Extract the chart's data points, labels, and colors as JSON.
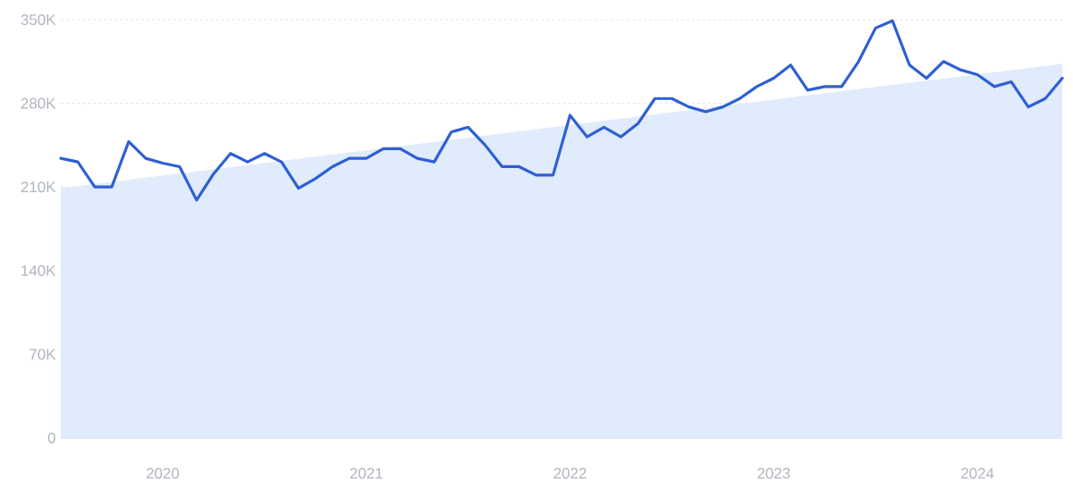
{
  "chart_data": {
    "type": "line",
    "x": [
      "2019-07",
      "2019-08",
      "2019-09",
      "2019-10",
      "2019-11",
      "2019-12",
      "2020-01",
      "2020-02",
      "2020-03",
      "2020-04",
      "2020-05",
      "2020-06",
      "2020-07",
      "2020-08",
      "2020-09",
      "2020-10",
      "2020-11",
      "2020-12",
      "2021-01",
      "2021-02",
      "2021-03",
      "2021-04",
      "2021-05",
      "2021-06",
      "2021-07",
      "2021-08",
      "2021-09",
      "2021-10",
      "2021-11",
      "2021-12",
      "2022-01",
      "2022-02",
      "2022-03",
      "2022-04",
      "2022-05",
      "2022-06",
      "2022-07",
      "2022-08",
      "2022-09",
      "2022-10",
      "2022-11",
      "2022-12",
      "2023-01",
      "2023-02",
      "2023-03",
      "2023-04",
      "2023-05",
      "2023-06",
      "2023-07",
      "2023-08",
      "2023-09",
      "2023-10",
      "2023-11",
      "2023-12",
      "2024-01",
      "2024-02",
      "2024-03",
      "2024-04",
      "2024-05",
      "2024-06"
    ],
    "series": [
      {
        "type": "area",
        "color": "#e0ebfb",
        "x": [
          "2019-07",
          "2024-06"
        ],
        "values": [
          209000,
          313000
        ]
      },
      {
        "color": "#2e5fd4",
        "values": [
          234000,
          231000,
          210000,
          210000,
          248000,
          234000,
          230000,
          227000,
          199000,
          221000,
          238000,
          231000,
          238000,
          231000,
          209000,
          217000,
          227000,
          234000,
          234000,
          242000,
          242000,
          234000,
          231000,
          256000,
          260000,
          245000,
          227000,
          227000,
          220000,
          220000,
          270000,
          252000,
          260000,
          252000,
          263000,
          284000,
          284000,
          277000,
          273000,
          277000,
          284000,
          294000,
          301000,
          312000,
          291000,
          294000,
          294000,
          315000,
          343000,
          349000,
          312000,
          301000,
          315000,
          308000,
          304000,
          294000,
          298000,
          277000,
          284000,
          301000
        ]
      }
    ],
    "xlim": [
      "2019-07",
      "2024-06"
    ],
    "xticks": [
      {
        "value": "2020-01",
        "label": "2020"
      },
      {
        "value": "2021-01",
        "label": "2021"
      },
      {
        "value": "2022-01",
        "label": "2022"
      },
      {
        "value": "2023-01",
        "label": "2023"
      },
      {
        "value": "2024-01",
        "label": "2024"
      }
    ],
    "ylim": [
      0,
      350000
    ],
    "yticks": [
      {
        "value": 0,
        "label": "0"
      },
      {
        "value": 70000,
        "label": "70K"
      },
      {
        "value": 140000,
        "label": "140K"
      },
      {
        "value": 210000,
        "label": "210K"
      },
      {
        "value": 280000,
        "label": "280K"
      },
      {
        "value": 350000,
        "label": "350K"
      }
    ],
    "grid": "y"
  }
}
